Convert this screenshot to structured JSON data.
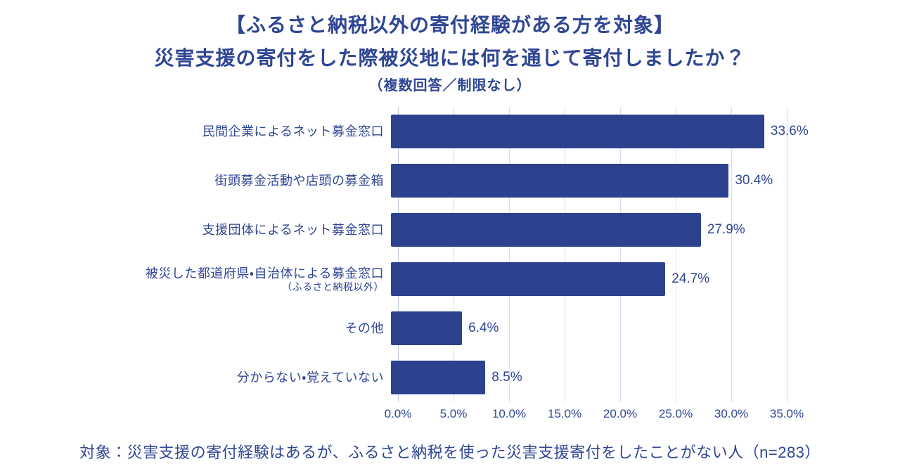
{
  "title": {
    "line1": "【ふるさと納税以外の寄付経験がある方を対象】",
    "line2": "災害支援の寄付をした際被災地には何を通じて寄付しましたか？",
    "line3": "（複数回答／制限なし）"
  },
  "footer": "対象：災害支援の寄付経験はあるが、ふるさと納税を使った災害支援寄付をしたことがない人（n=283）",
  "colors": {
    "bar": "#2C428E",
    "text": "#2F4693",
    "gridline": "#D9DCEE",
    "axis": "#C3C9DF"
  },
  "chart_data": {
    "type": "bar",
    "orientation": "horizontal",
    "title": "【ふるさと納税以外の寄付経験がある方を対象】災害支援の寄付をした際被災地には何を通じて寄付しましたか？（複数回答／制限なし）",
    "categories": [
      "民間企業によるネット募金窓口",
      "街頭募金活動や店頭の募金箱",
      "支援団体によるネット募金窓口",
      "被災した都道府県・自治体による募金窓口",
      "その他",
      "分からない・覚えていない"
    ],
    "category_subnotes": [
      "",
      "",
      "",
      "（ふるさと納税以外）",
      "",
      ""
    ],
    "values": [
      33.6,
      30.4,
      27.9,
      24.7,
      6.4,
      8.5
    ],
    "value_labels": [
      "33.6%",
      "30.4%",
      "27.9%",
      "24.7%",
      "6.4%",
      "8.5%"
    ],
    "xlabel": "",
    "ylabel": "",
    "xlim": [
      0,
      35
    ],
    "x_ticks": [
      0,
      5,
      10,
      15,
      20,
      25,
      30,
      35
    ],
    "x_tick_labels": [
      "0.0%",
      "5.0%",
      "10.0%",
      "15.0%",
      "20.0%",
      "25.0%",
      "30.0%",
      "35.0%"
    ],
    "grid": true,
    "legend": false,
    "sample_note": "n=283"
  }
}
